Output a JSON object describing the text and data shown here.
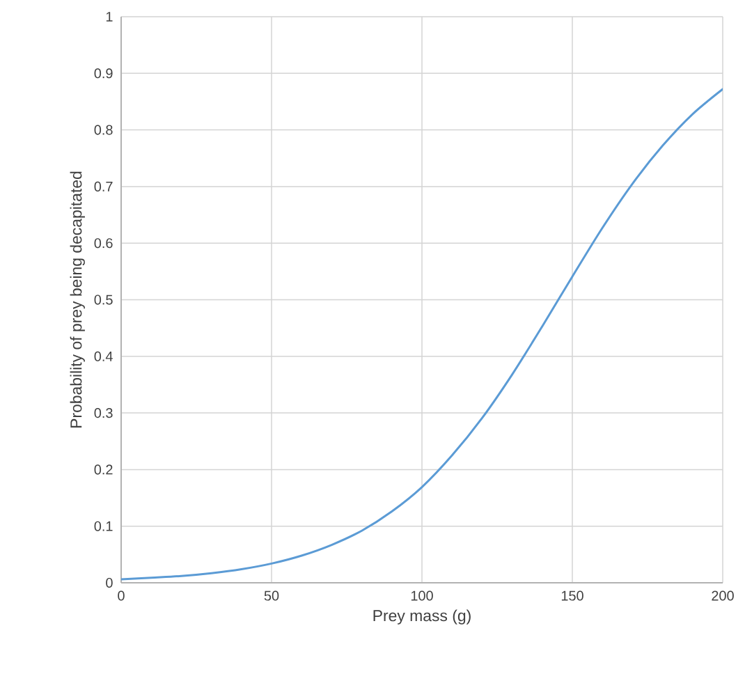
{
  "chart_data": {
    "type": "line",
    "xlabel": "Prey mass (g)",
    "ylabel": "Probability of prey being decapitated",
    "x": [
      0,
      10,
      20,
      30,
      40,
      50,
      60,
      70,
      80,
      90,
      100,
      110,
      120,
      130,
      140,
      150,
      160,
      170,
      180,
      190,
      200
    ],
    "series": [
      {
        "color": "#5b9bd5",
        "values": [
          0.006,
          0.009,
          0.012,
          0.017,
          0.024,
          0.034,
          0.048,
          0.067,
          0.092,
          0.126,
          0.169,
          0.225,
          0.291,
          0.368,
          0.453,
          0.541,
          0.627,
          0.705,
          0.772,
          0.828,
          0.872
        ]
      }
    ],
    "xlim": [
      0,
      200
    ],
    "ylim": [
      0,
      1
    ],
    "xticks": [
      0,
      50,
      100,
      150,
      200
    ],
    "yticks": [
      0,
      0.1,
      0.2,
      0.3,
      0.4,
      0.5,
      0.6,
      0.7,
      0.8,
      0.9,
      1
    ],
    "grid": true,
    "marker": "none",
    "line_style": "solid"
  }
}
